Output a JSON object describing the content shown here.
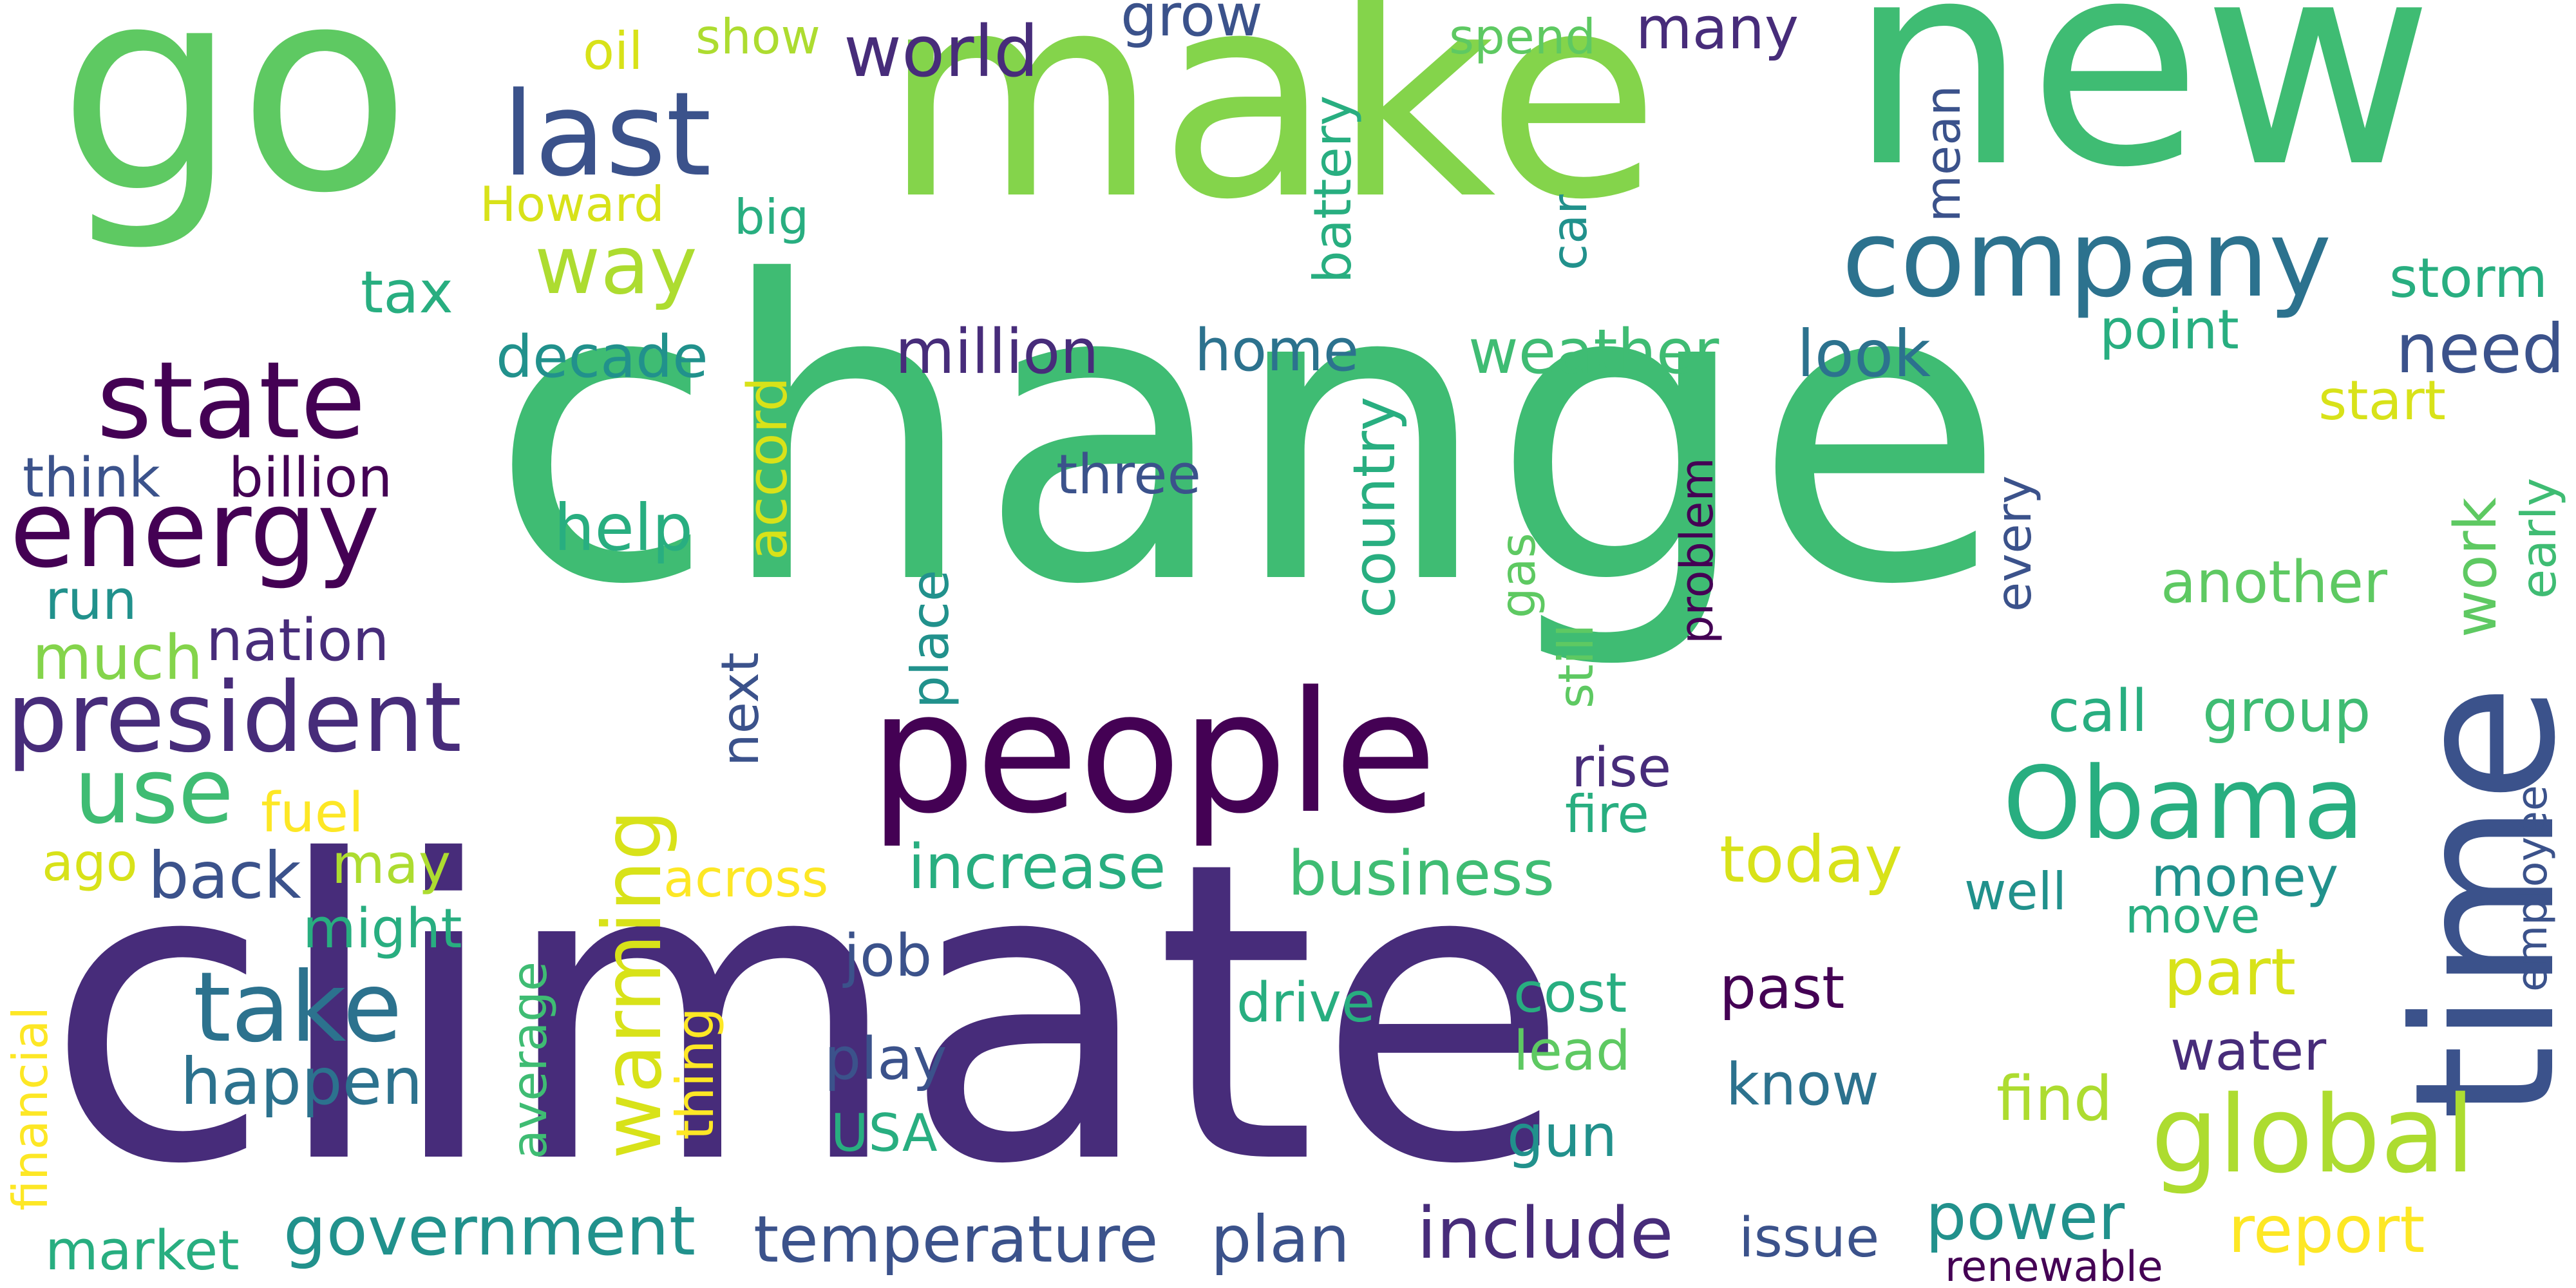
{
  "palette": {
    "c1": "#440154",
    "c2": "#472c7a",
    "c3": "#3b528b",
    "c4": "#2c728e",
    "c5": "#21918c",
    "c6": "#28ae80",
    "c7": "#3fbc73",
    "c8": "#5ec962",
    "c9": "#84d44b",
    "c10": "#addc30",
    "c11": "#d8e219",
    "c12": "#fde725"
  },
  "words": [
    {
      "text": "change",
      "color": "c7"
    },
    {
      "text": "climate",
      "color": "c2"
    },
    {
      "text": "make",
      "color": "c9"
    },
    {
      "text": "go",
      "color": "c8"
    },
    {
      "text": "new",
      "color": "c7"
    },
    {
      "text": "people",
      "color": "c1"
    },
    {
      "text": "time",
      "color": "c3"
    },
    {
      "text": "company",
      "color": "c4"
    },
    {
      "text": "state",
      "color": "c1"
    },
    {
      "text": "energy",
      "color": "c1"
    },
    {
      "text": "last",
      "color": "c3"
    },
    {
      "text": "president",
      "color": "c2"
    },
    {
      "text": "Obama",
      "color": "c6"
    },
    {
      "text": "global",
      "color": "c10"
    },
    {
      "text": "warming",
      "color": "c11"
    },
    {
      "text": "take",
      "color": "c4"
    },
    {
      "text": "government",
      "color": "c5"
    },
    {
      "text": "temperature",
      "color": "c3"
    },
    {
      "text": "plan",
      "color": "c3"
    },
    {
      "text": "include",
      "color": "c2"
    },
    {
      "text": "way",
      "color": "c10"
    },
    {
      "text": "use",
      "color": "c7"
    },
    {
      "text": "world",
      "color": "c2"
    },
    {
      "text": "happen",
      "color": "c4"
    },
    {
      "text": "increase",
      "color": "c6"
    },
    {
      "text": "business",
      "color": "c7"
    },
    {
      "text": "today",
      "color": "c11"
    },
    {
      "text": "report",
      "color": "c12"
    },
    {
      "text": "power",
      "color": "c5"
    },
    {
      "text": "million",
      "color": "c2"
    },
    {
      "text": "home",
      "color": "c4"
    },
    {
      "text": "weather",
      "color": "c7"
    },
    {
      "text": "look",
      "color": "c4"
    },
    {
      "text": "need",
      "color": "c3"
    },
    {
      "text": "decade",
      "color": "c5"
    },
    {
      "text": "billion",
      "color": "c1"
    },
    {
      "text": "think",
      "color": "c3"
    },
    {
      "text": "help",
      "color": "c6"
    },
    {
      "text": "three",
      "color": "c3"
    },
    {
      "text": "nation",
      "color": "c2"
    },
    {
      "text": "much",
      "color": "c9"
    },
    {
      "text": "run",
      "color": "c5"
    },
    {
      "text": "back",
      "color": "c3"
    },
    {
      "text": "may",
      "color": "c10"
    },
    {
      "text": "might",
      "color": "c6"
    },
    {
      "text": "fuel",
      "color": "c12"
    },
    {
      "text": "ago",
      "color": "c11"
    },
    {
      "text": "across",
      "color": "c12"
    },
    {
      "text": "job",
      "color": "c3"
    },
    {
      "text": "play",
      "color": "c3"
    },
    {
      "text": "USA",
      "color": "c6"
    },
    {
      "text": "drive",
      "color": "c6"
    },
    {
      "text": "cost",
      "color": "c6"
    },
    {
      "text": "lead",
      "color": "c8"
    },
    {
      "text": "gun",
      "color": "c5"
    },
    {
      "text": "past",
      "color": "c1"
    },
    {
      "text": "know",
      "color": "c4"
    },
    {
      "text": "rise",
      "color": "c2"
    },
    {
      "text": "fire",
      "color": "c6"
    },
    {
      "text": "call",
      "color": "c6"
    },
    {
      "text": "group",
      "color": "c7"
    },
    {
      "text": "another",
      "color": "c8"
    },
    {
      "text": "start",
      "color": "c11"
    },
    {
      "text": "point",
      "color": "c6"
    },
    {
      "text": "storm",
      "color": "c6"
    },
    {
      "text": "part",
      "color": "c11"
    },
    {
      "text": "water",
      "color": "c2"
    },
    {
      "text": "find",
      "color": "c10"
    },
    {
      "text": "money",
      "color": "c5"
    },
    {
      "text": "move",
      "color": "c6"
    },
    {
      "text": "well",
      "color": "c5"
    },
    {
      "text": "issue",
      "color": "c3"
    },
    {
      "text": "market",
      "color": "c6"
    },
    {
      "text": "renewable",
      "color": "c1"
    },
    {
      "text": "tax",
      "color": "c6"
    },
    {
      "text": "Howard",
      "color": "c11"
    },
    {
      "text": "big",
      "color": "c6"
    },
    {
      "text": "oil",
      "color": "c11"
    },
    {
      "text": "show",
      "color": "c10"
    },
    {
      "text": "grow",
      "color": "c3"
    },
    {
      "text": "spend",
      "color": "c8"
    },
    {
      "text": "many",
      "color": "c2"
    },
    {
      "text": "country",
      "color": "c6"
    },
    {
      "text": "accord",
      "color": "c11"
    },
    {
      "text": "battery",
      "color": "c6"
    },
    {
      "text": "mean",
      "color": "c3"
    },
    {
      "text": "car",
      "color": "c5"
    },
    {
      "text": "problem",
      "color": "c1"
    },
    {
      "text": "every",
      "color": "c3"
    },
    {
      "text": "work",
      "color": "c8"
    },
    {
      "text": "early",
      "color": "c7"
    },
    {
      "text": "employee",
      "color": "c3"
    },
    {
      "text": "gas",
      "color": "c8"
    },
    {
      "text": "still",
      "color": "c8"
    },
    {
      "text": "place",
      "color": "c5"
    },
    {
      "text": "next",
      "color": "c3"
    },
    {
      "text": "average",
      "color": "c7"
    },
    {
      "text": "thing",
      "color": "c12"
    },
    {
      "text": "financial",
      "color": "c12"
    }
  ]
}
